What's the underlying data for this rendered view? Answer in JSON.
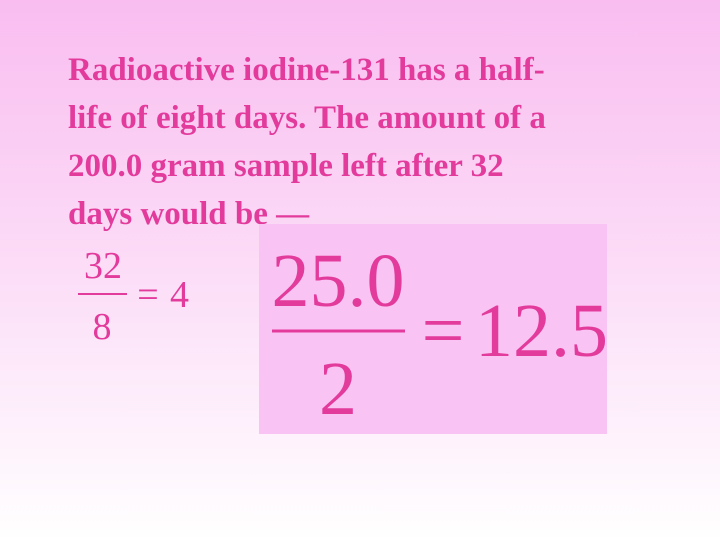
{
  "text": {
    "lines": [
      "Radioactive iodine-131 has a half-",
      "life of eight days. The amount of a",
      "200.0 gram sample left after 32",
      "days would be —"
    ]
  },
  "equations": [
    {
      "numerator": "32",
      "denominator": "8",
      "equals": "=",
      "result": "4"
    },
    {
      "numerator": "25.0",
      "denominator": "2",
      "equals": "=",
      "result": "12.5"
    }
  ]
}
